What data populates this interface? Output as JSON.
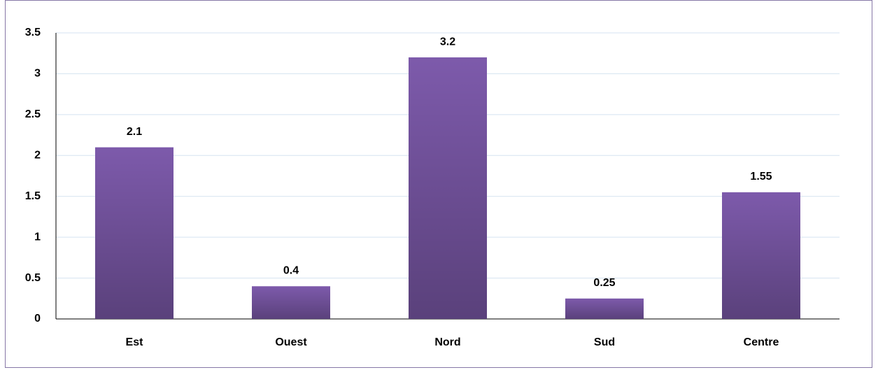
{
  "chart_data": {
    "type": "bar",
    "categories": [
      "Est",
      "Ouest",
      "Nord",
      "Sud",
      "Centre"
    ],
    "values": [
      2.1,
      0.4,
      3.2,
      0.25,
      1.55
    ],
    "color": "#7d5aab",
    "ylim": [
      0,
      3.5
    ],
    "yticks": [
      0,
      0.5,
      1,
      1.5,
      2,
      2.5,
      3,
      3.5
    ],
    "grid": true
  }
}
